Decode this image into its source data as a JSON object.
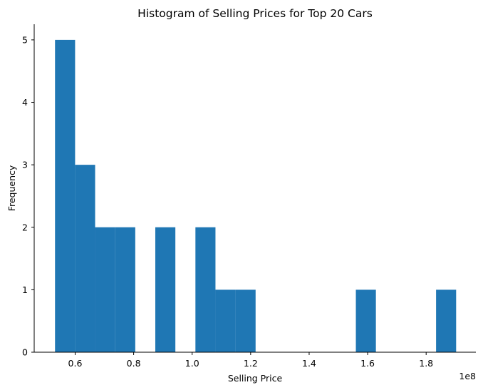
{
  "chart_data": {
    "type": "bar",
    "title": "Histogram of Selling Prices for Top 20 Cars",
    "xlabel": "Selling Price",
    "ylabel": "Frequency",
    "x_offset_label": "1e8",
    "xlim": [
      0.46,
      1.97
    ],
    "ylim": [
      0,
      5.25
    ],
    "x_ticks": [
      0.6,
      0.8,
      1.0,
      1.2,
      1.4,
      1.6,
      1.8
    ],
    "x_tick_labels": [
      "0.6",
      "0.8",
      "1.0",
      "1.2",
      "1.4",
      "1.6",
      "1.8"
    ],
    "y_ticks": [
      0,
      1,
      2,
      3,
      4,
      5
    ],
    "y_tick_labels": [
      "0",
      "1",
      "2",
      "3",
      "4",
      "5"
    ],
    "grid": false,
    "legend": "none",
    "bar_color": "#1f77b4",
    "bins": [
      {
        "x0": 0.5312,
        "x1": 0.5998,
        "count": 5
      },
      {
        "x0": 0.5998,
        "x1": 0.6683,
        "count": 3
      },
      {
        "x0": 0.6683,
        "x1": 0.7369,
        "count": 2
      },
      {
        "x0": 0.7369,
        "x1": 0.8055,
        "count": 2
      },
      {
        "x0": 0.8055,
        "x1": 0.874,
        "count": 0
      },
      {
        "x0": 0.874,
        "x1": 0.9426,
        "count": 2
      },
      {
        "x0": 0.9426,
        "x1": 1.0112,
        "count": 0
      },
      {
        "x0": 1.0112,
        "x1": 1.0797,
        "count": 2
      },
      {
        "x0": 1.0797,
        "x1": 1.1483,
        "count": 1
      },
      {
        "x0": 1.1483,
        "x1": 1.2169,
        "count": 1
      },
      {
        "x0": 1.2169,
        "x1": 1.2854,
        "count": 0
      },
      {
        "x0": 1.2854,
        "x1": 1.354,
        "count": 0
      },
      {
        "x0": 1.354,
        "x1": 1.4225,
        "count": 0
      },
      {
        "x0": 1.4225,
        "x1": 1.4911,
        "count": 0
      },
      {
        "x0": 1.4911,
        "x1": 1.5597,
        "count": 0
      },
      {
        "x0": 1.5597,
        "x1": 1.6282,
        "count": 1
      },
      {
        "x0": 1.6282,
        "x1": 1.6968,
        "count": 0
      },
      {
        "x0": 1.6968,
        "x1": 1.7654,
        "count": 0
      },
      {
        "x0": 1.7654,
        "x1": 1.8339,
        "count": 0
      },
      {
        "x0": 1.8339,
        "x1": 1.9025,
        "count": 1
      }
    ]
  }
}
